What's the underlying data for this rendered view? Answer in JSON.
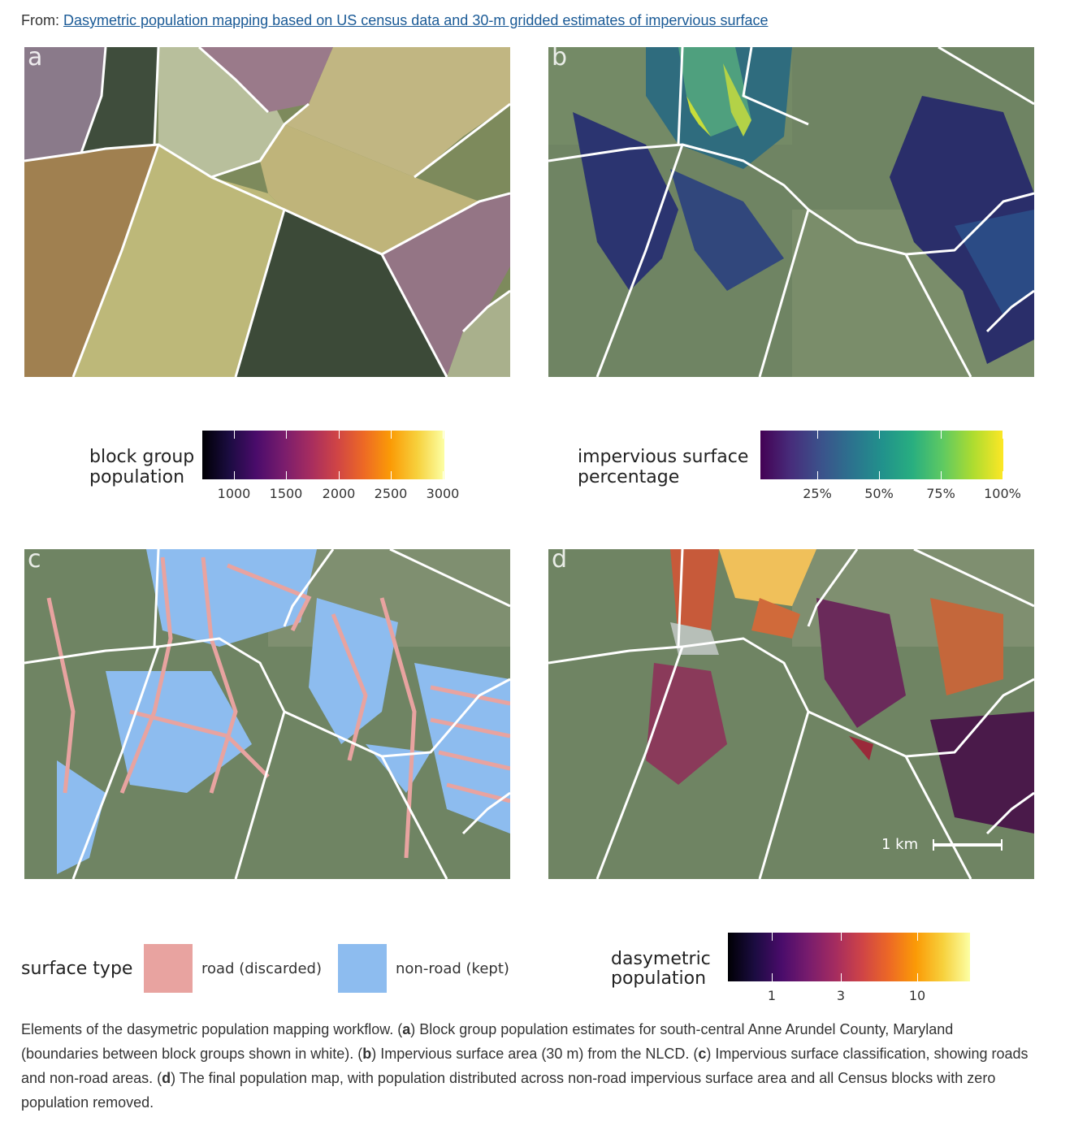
{
  "header": {
    "from_label": "From:",
    "link_text": "Dasymetric population mapping based on US census data and 30-m gridded estimates of impervious surface"
  },
  "panels": [
    {
      "letter": "a"
    },
    {
      "letter": "b"
    },
    {
      "letter": "c"
    },
    {
      "letter": "d",
      "scalebar_label": "1 km"
    }
  ],
  "legends": {
    "block_group": {
      "title_line1": "block group",
      "title_line2": "population",
      "ticks": [
        "1000",
        "1500",
        "2000",
        "2500",
        "3000"
      ],
      "colormap": "inferno"
    },
    "impervious": {
      "title_line1": "impervious surface",
      "title_line2": "percentage",
      "ticks": [
        "25%",
        "50%",
        "75%",
        "100%"
      ],
      "colormap": "viridis"
    },
    "surface_type": {
      "title": "surface type",
      "items": [
        {
          "label": "road (discarded)",
          "color": "#e8a3a0"
        },
        {
          "label": "non-road (kept)",
          "color": "#8dbcef"
        }
      ]
    },
    "dasymetric": {
      "title_line1": "dasymetric",
      "title_line2": "population",
      "ticks": [
        "1",
        "3",
        "10"
      ],
      "colormap": "inferno"
    }
  },
  "caption": {
    "intro": "Elements of the dasymetric population mapping workflow. (",
    "a_letter": "a",
    "a_text": ") Block group population estimates for south-central Anne Arundel County, Maryland (boundaries between block groups shown in white). (",
    "b_letter": "b",
    "b_text": ") Impervious surface area (30 m) from the NLCD. (",
    "c_letter": "c",
    "c_text": ") Impervious surface classification, showing roads and non-road areas. (",
    "d_letter": "d",
    "d_text": ") The final population map, with population distributed across non-road impervious surface area and all Census blocks with zero population removed."
  }
}
